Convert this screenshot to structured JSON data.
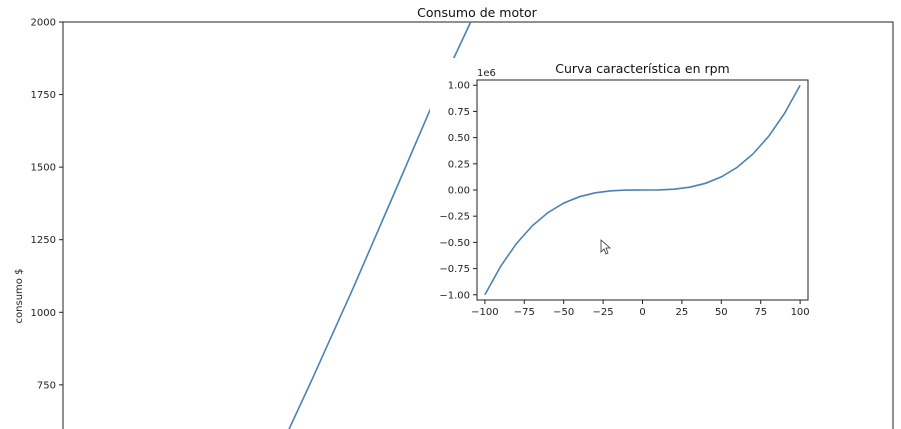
{
  "chart_data": [
    {
      "type": "line",
      "title": "Consumo de motor",
      "xlabel": "",
      "ylabel": "consumo $",
      "ylim": [
        560,
        2000
      ],
      "xlim": [
        -100,
        100
      ],
      "grid": false,
      "yticks": [
        750,
        1000,
        1250,
        1500,
        1750,
        2000
      ],
      "series": [
        {
          "color": "#4a82b0",
          "x": [
            -46.75,
            -40,
            -30,
            -20,
            -10,
            -1.75
          ],
          "y": [
            560,
            768,
            1086,
            1416,
            1749,
            2000
          ]
        }
      ]
    },
    {
      "type": "line",
      "title": "Curva característica en rpm",
      "xlabel": "",
      "ylabel": "",
      "y_offset_label": "1e6",
      "xlim": [
        -105,
        105
      ],
      "ylim": [
        -1.05,
        1.05
      ],
      "grid": false,
      "xticks": [
        -100,
        -75,
        -50,
        -25,
        0,
        25,
        50,
        75,
        100
      ],
      "yticks": [
        -1.0,
        -0.75,
        -0.5,
        -0.25,
        0.0,
        0.25,
        0.5,
        0.75,
        1.0
      ],
      "series": [
        {
          "color": "#4a82b0",
          "x": [
            -100,
            -90,
            -80,
            -70,
            -60,
            -50,
            -40,
            -30,
            -20,
            -10,
            0,
            10,
            20,
            30,
            40,
            50,
            60,
            70,
            80,
            90,
            100
          ],
          "y": [
            -1.0,
            -0.729,
            -0.512,
            -0.343,
            -0.216,
            -0.125,
            -0.064,
            -0.027,
            -0.008,
            -0.001,
            0.0,
            0.001,
            0.008,
            0.027,
            0.064,
            0.125,
            0.216,
            0.343,
            0.512,
            0.729,
            1.0
          ]
        }
      ]
    }
  ]
}
